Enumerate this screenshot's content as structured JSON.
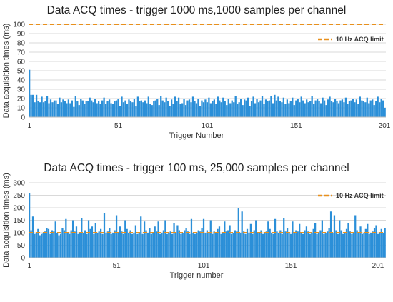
{
  "colors": {
    "bar": "#2b8fd8",
    "limit": "#e8901c",
    "grid": "#d9d9d9",
    "mean_line": "#92d050"
  },
  "chart_data": [
    {
      "type": "bar",
      "title": "Data ACQ times - trigger 1000 ms,1000 samples per channel",
      "xlabel": "Trigger Number",
      "ylabel": "Data acquisition times (ms)",
      "ylim": [
        0,
        100
      ],
      "yticks": [
        "0",
        "10",
        "20",
        "30",
        "40",
        "50",
        "60",
        "70",
        "80",
        "90",
        "100"
      ],
      "xticks": [
        "1",
        "51",
        "101",
        "151",
        "201"
      ],
      "grid": true,
      "legend": {
        "position": "top-right",
        "entries": [
          "10 Hz ACQ limit"
        ]
      },
      "limit_line": {
        "name": "10 Hz ACQ limit",
        "value": 100
      },
      "x_start": 1,
      "values": [
        51,
        24,
        24,
        16,
        24,
        17,
        16,
        22,
        16,
        17,
        23,
        15,
        19,
        16,
        18,
        18,
        14,
        21,
        16,
        19,
        17,
        15,
        19,
        15,
        18,
        11,
        23,
        17,
        13,
        20,
        18,
        14,
        17,
        17,
        21,
        18,
        16,
        20,
        15,
        17,
        14,
        18,
        21,
        14,
        17,
        19,
        15,
        14,
        17,
        18,
        20,
        12,
        22,
        16,
        18,
        14,
        19,
        17,
        16,
        20,
        12,
        22,
        17,
        18,
        16,
        18,
        15,
        22,
        14,
        13,
        17,
        18,
        20,
        13,
        23,
        18,
        16,
        21,
        17,
        12,
        19,
        14,
        22,
        17,
        21,
        14,
        15,
        20,
        13,
        18,
        19,
        16,
        22,
        17,
        15,
        20,
        12,
        18,
        16,
        19,
        16,
        21,
        15,
        17,
        19,
        14,
        22,
        18,
        16,
        21,
        17,
        13,
        20,
        15,
        18,
        16,
        23,
        14,
        16,
        20,
        13,
        19,
        18,
        21,
        12,
        17,
        22,
        15,
        20,
        16,
        18,
        23,
        14,
        19,
        17,
        18,
        23,
        15,
        24,
        18,
        22,
        17,
        16,
        21,
        14,
        19,
        15,
        17,
        21,
        13,
        18,
        20,
        16,
        22,
        18,
        15,
        19,
        16,
        17,
        23,
        14,
        18,
        20,
        17,
        15,
        21,
        18,
        13,
        19,
        22,
        17,
        16,
        20,
        17,
        15,
        18,
        19,
        16,
        21,
        14,
        17,
        18,
        20,
        16,
        19,
        14,
        22,
        18,
        17,
        16,
        21,
        15,
        18,
        19,
        13,
        17,
        22,
        16,
        20,
        18,
        10
      ]
    },
    {
      "type": "bar",
      "title": "Data ACQ times - trigger 100 ms, 25,000 samples per channel",
      "xlabel": "Trigger number",
      "ylabel": "Data acquisition times (ms)",
      "ylim": [
        0,
        300
      ],
      "yticks": [
        "0",
        "50",
        "100",
        "150",
        "200",
        "250",
        "300"
      ],
      "xticks": [
        "1",
        "51",
        "101",
        "151",
        "201"
      ],
      "grid": true,
      "legend": {
        "position": "top-right",
        "entries": [
          "10 Hz ACQ limit"
        ]
      },
      "limit_line": {
        "name": "10 Hz ACQ limit",
        "value": 100
      },
      "x_start": 1,
      "values": [
        260,
        110,
        165,
        95,
        100,
        115,
        90,
        95,
        100,
        105,
        120,
        115,
        95,
        110,
        105,
        145,
        100,
        90,
        95,
        120,
        110,
        155,
        100,
        95,
        110,
        150,
        105,
        125,
        95,
        100,
        160,
        100,
        110,
        95,
        150,
        115,
        125,
        95,
        140,
        100,
        105,
        115,
        95,
        180,
        100,
        105,
        120,
        95,
        100,
        110,
        170,
        100,
        125,
        105,
        95,
        150,
        115,
        100,
        110,
        95,
        100,
        130,
        95,
        100,
        165,
        95,
        145,
        110,
        100,
        120,
        95,
        100,
        125,
        105,
        145,
        95,
        100,
        110,
        150,
        95,
        100,
        105,
        95,
        140,
        100,
        130,
        110,
        95,
        100,
        110,
        120,
        105,
        95,
        155,
        100,
        95,
        100,
        110,
        105,
        120,
        155,
        100,
        110,
        100,
        150,
        95,
        105,
        100,
        115,
        125,
        95,
        100,
        145,
        105,
        110,
        130,
        95,
        100,
        110,
        105,
        200,
        100,
        185,
        105,
        95,
        115,
        100,
        135,
        95,
        110,
        150,
        100,
        100,
        110,
        95,
        100,
        105,
        145,
        115,
        100,
        95,
        155,
        105,
        100,
        110,
        95,
        160,
        105,
        120,
        100,
        95,
        145,
        100,
        110,
        105,
        135,
        100,
        95,
        110,
        125,
        105,
        95,
        100,
        115,
        140,
        95,
        100,
        110,
        150,
        95,
        100,
        105,
        120,
        185,
        100,
        170,
        110,
        95,
        150,
        110,
        95,
        100,
        115,
        140,
        105,
        95,
        100,
        170,
        110,
        100,
        125,
        95,
        100,
        115,
        135,
        95,
        100,
        105,
        120,
        130,
        95,
        100,
        115,
        100,
        120
      ]
    }
  ]
}
